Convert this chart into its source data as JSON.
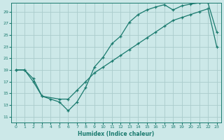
{
  "xlabel": "Humidex (Indice chaleur)",
  "bg_color": "#cce8e8",
  "grid_color": "#aacccc",
  "line_color": "#1a7a6e",
  "xlim": [
    -0.5,
    23.5
  ],
  "ylim": [
    10,
    30.5
  ],
  "xticks": [
    0,
    1,
    2,
    3,
    4,
    5,
    6,
    7,
    8,
    9,
    10,
    11,
    12,
    13,
    14,
    15,
    16,
    17,
    18,
    19,
    20,
    21,
    22,
    23
  ],
  "yticks": [
    11,
    13,
    15,
    17,
    19,
    21,
    23,
    25,
    27,
    29
  ],
  "line1_x": [
    0,
    1,
    2,
    3,
    4,
    5,
    6,
    7,
    8,
    9,
    10,
    11,
    12,
    13,
    14,
    15,
    16,
    17,
    18,
    19,
    20,
    21,
    22,
    23
  ],
  "line1_y": [
    19,
    19,
    17,
    14.5,
    14,
    13.5,
    12,
    13.5,
    16,
    19.5,
    21.2,
    23.5,
    24.8,
    27.2,
    28.5,
    29.3,
    29.8,
    30.2,
    29.3,
    30.0,
    30.3,
    30.5,
    30.5,
    25.5
  ],
  "line2_x": [
    0,
    1,
    2,
    3,
    5,
    6,
    7,
    8,
    9,
    10,
    11,
    12,
    13,
    14,
    15,
    16,
    17,
    18,
    19,
    20,
    21,
    22,
    23
  ],
  "line2_y": [
    19,
    19,
    17.5,
    14.5,
    14,
    14,
    15.5,
    17,
    18.5,
    19.5,
    20.5,
    21.5,
    22.5,
    23.5,
    24.5,
    25.5,
    26.5,
    27.5,
    28,
    28.5,
    29,
    29.5,
    23
  ]
}
